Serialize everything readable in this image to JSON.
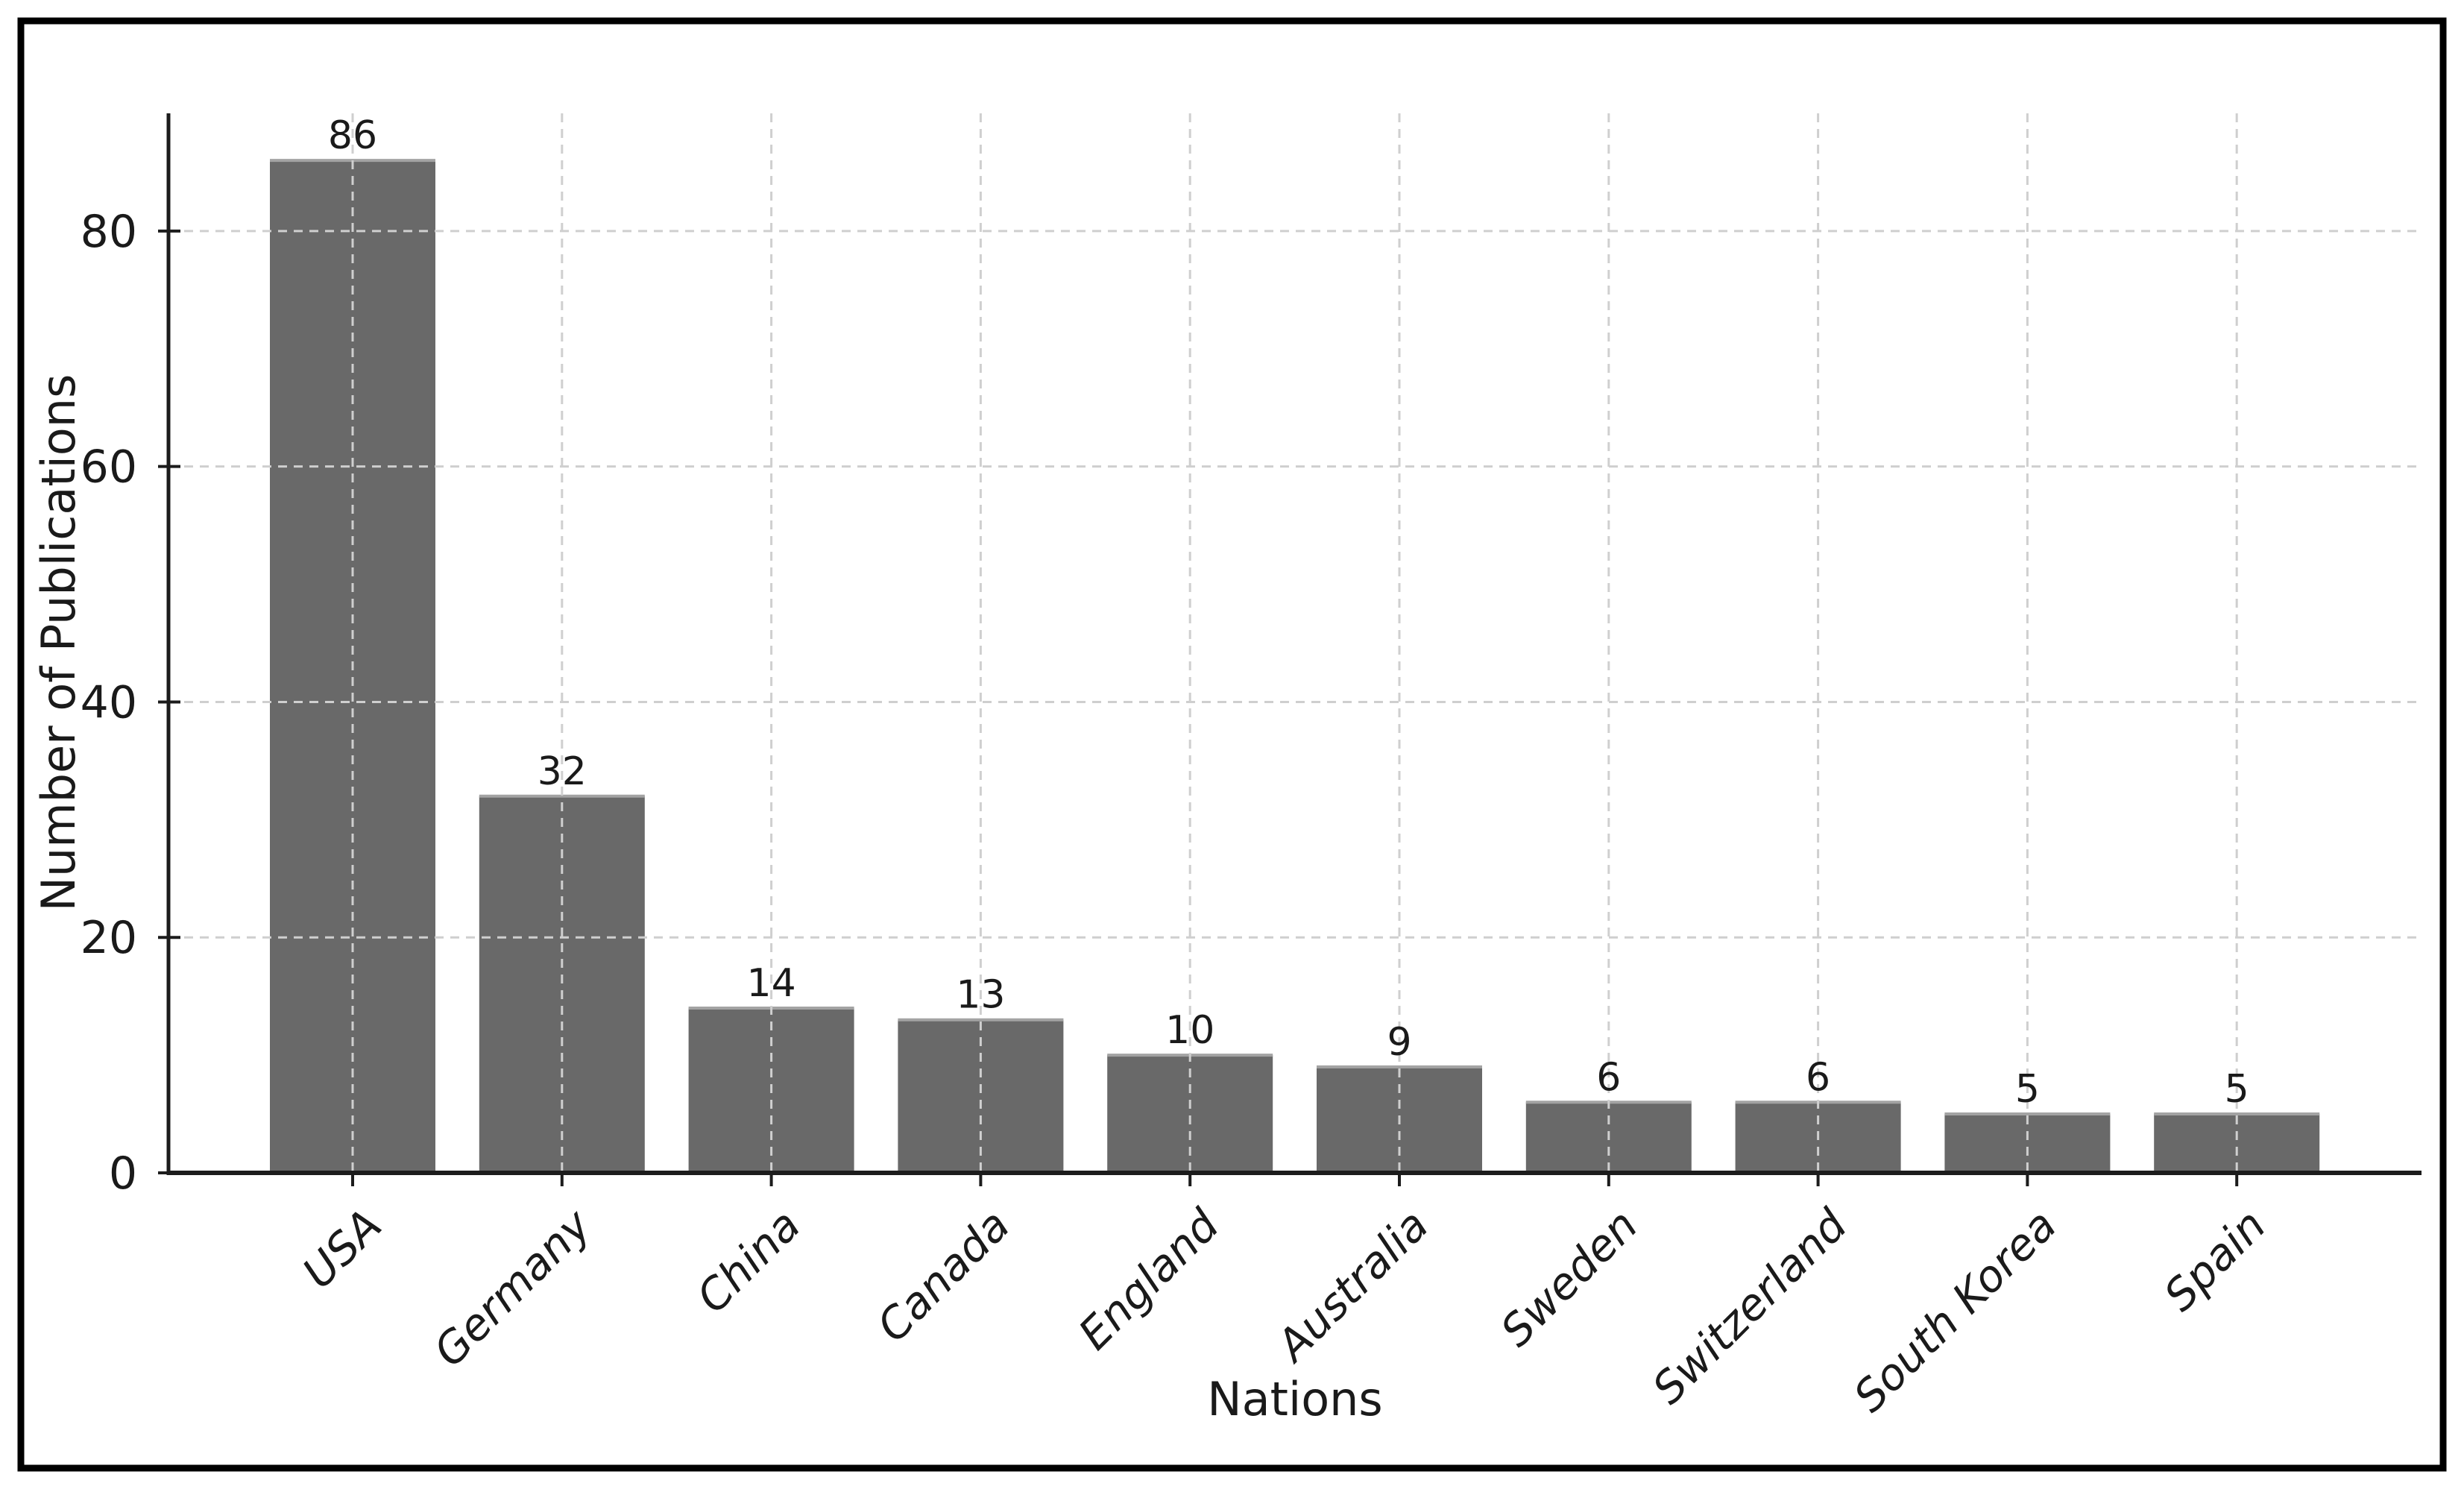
{
  "figure": {
    "background": "#ffffff",
    "border_color": "#000000"
  },
  "chart_data": {
    "type": "bar",
    "title": "",
    "categories": [
      "USA",
      "Germany",
      "China",
      "Canada",
      "England",
      "Australia",
      "Sweden",
      "Switzerland",
      "South Korea",
      "Spain"
    ],
    "values": [
      86,
      32,
      14,
      13,
      10,
      9,
      6,
      6,
      5,
      5
    ],
    "xlabel": "Nations",
    "ylabel": "Number of Publications",
    "yticks": [
      0,
      20,
      40,
      60,
      80
    ],
    "ylim": [
      0,
      90
    ],
    "grid": true,
    "grid_style": "dashed",
    "legend_position": "none",
    "bar_color": "#696969",
    "bar_top_edge_color": "#a3a3a3",
    "grid_color": "#cfcfcf",
    "axis_color": "#1c1c1c",
    "text_color": "#1a1a1a"
  }
}
